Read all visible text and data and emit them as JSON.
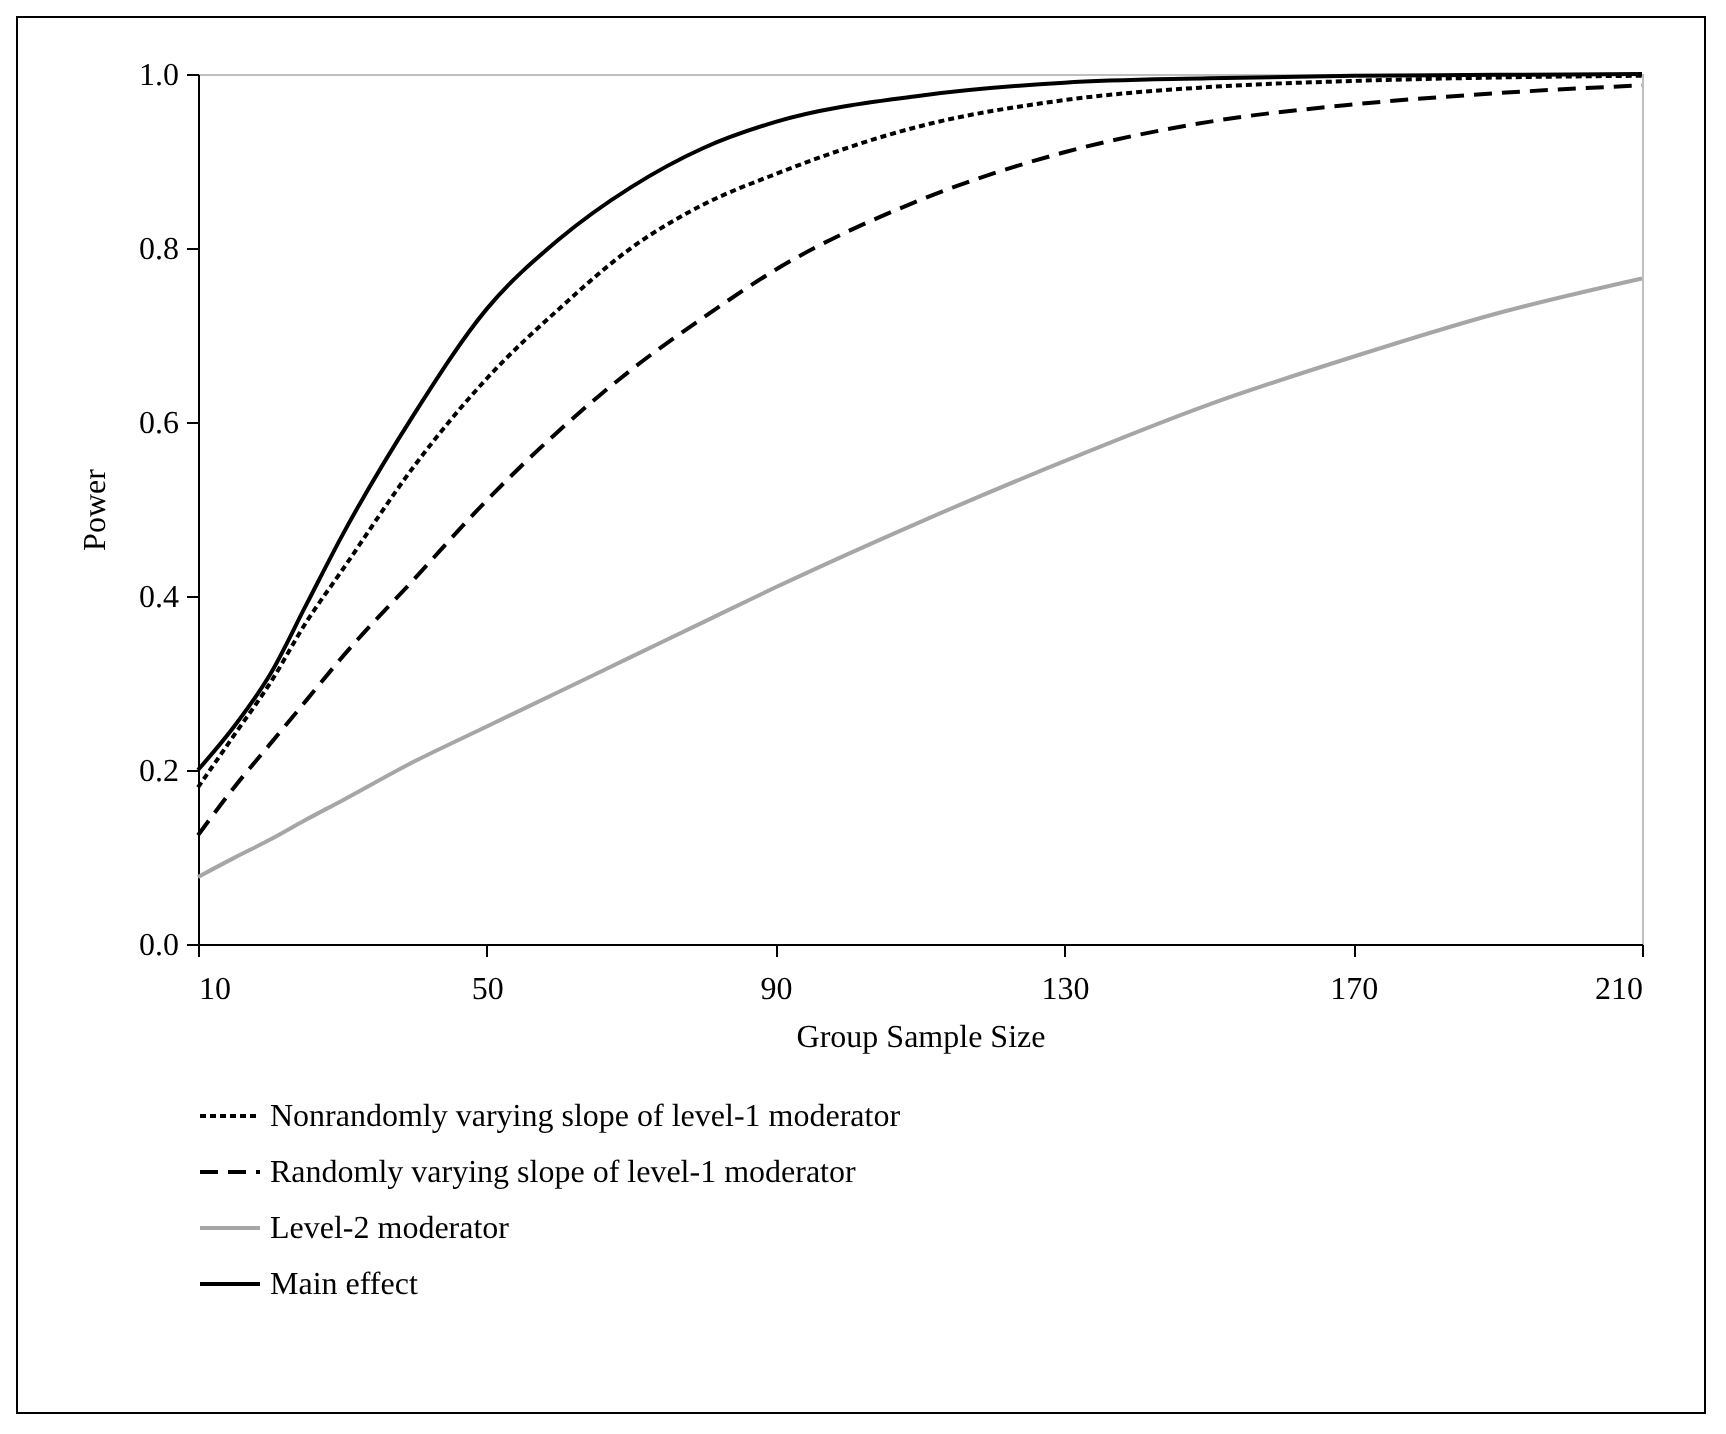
{
  "chart_data": {
    "type": "line",
    "xlabel": "Group Sample Size",
    "ylabel": "Power",
    "x": [
      10,
      15,
      20,
      25,
      30,
      40,
      50,
      60,
      70,
      80,
      90,
      110,
      130,
      150,
      170,
      190,
      210
    ],
    "series": [
      {
        "name": "Nonrandomly varying slope of level-1 moderator",
        "color": "#000000",
        "line_style": "dotted",
        "values": [
          0.18,
          0.24,
          0.3,
          0.37,
          0.43,
          0.55,
          0.65,
          0.73,
          0.8,
          0.85,
          0.885,
          0.94,
          0.97,
          0.985,
          0.992,
          0.996,
          0.998
        ]
      },
      {
        "name": "Randomly varying slope of level-1 moderator",
        "color": "#000000",
        "line_style": "dashed",
        "values": [
          0.125,
          0.18,
          0.23,
          0.28,
          0.33,
          0.42,
          0.51,
          0.59,
          0.66,
          0.72,
          0.775,
          0.855,
          0.91,
          0.945,
          0.965,
          0.978,
          0.987
        ]
      },
      {
        "name": "Level-2 moderator",
        "color": "#a6a6a6",
        "line_style": "solid",
        "values": [
          0.077,
          0.099,
          0.12,
          0.143,
          0.165,
          0.21,
          0.25,
          0.29,
          0.33,
          0.37,
          0.41,
          0.485,
          0.555,
          0.62,
          0.675,
          0.725,
          0.765
        ]
      },
      {
        "name": "Main effect",
        "color": "#000000",
        "line_style": "solid",
        "values": [
          0.2,
          0.25,
          0.31,
          0.39,
          0.47,
          0.61,
          0.73,
          0.81,
          0.87,
          0.915,
          0.945,
          0.975,
          0.99,
          0.995,
          0.998,
          0.999,
          1.0
        ]
      }
    ],
    "xlim": [
      10,
      210
    ],
    "xticks": [
      10,
      50,
      90,
      130,
      170,
      210
    ],
    "ylim": [
      0,
      1
    ],
    "yticks": [
      {
        "value": 0,
        "label": "0.0"
      },
      0.2,
      0.4,
      0.6,
      0.8,
      {
        "value": 1,
        "label": "1.0"
      }
    ],
    "grid": false,
    "legend": "bottom",
    "marker": "none"
  }
}
